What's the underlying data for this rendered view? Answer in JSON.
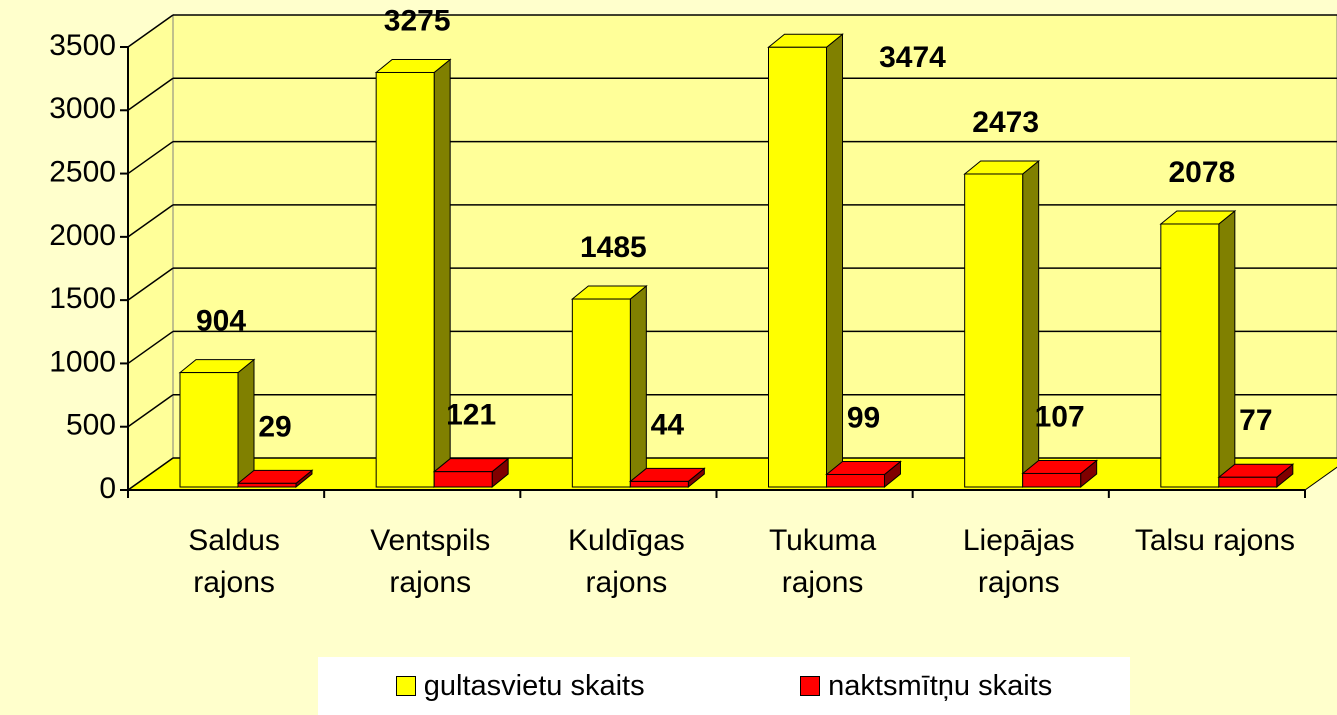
{
  "chart_data": {
    "type": "bar3d",
    "categories": [
      "Saldus rajons",
      "Ventspils rajons",
      "Kuldīgas rajons",
      "Tukuma rajons",
      "Liepājas rajons",
      "Talsu rajons"
    ],
    "series": [
      {
        "name": "gultasvietu skaits",
        "color": "#ffff00",
        "values": [
          904,
          3275,
          1485,
          3474,
          2473,
          2078
        ]
      },
      {
        "name": "naktsmītņu skaits",
        "color": "#ff0000",
        "values": [
          29,
          121,
          44,
          99,
          107,
          77
        ]
      }
    ],
    "ylim": [
      0,
      3500
    ],
    "yticks": [
      0,
      500,
      1000,
      1500,
      2000,
      2500,
      3000,
      3500
    ],
    "grid": true,
    "legend": "bottom"
  }
}
